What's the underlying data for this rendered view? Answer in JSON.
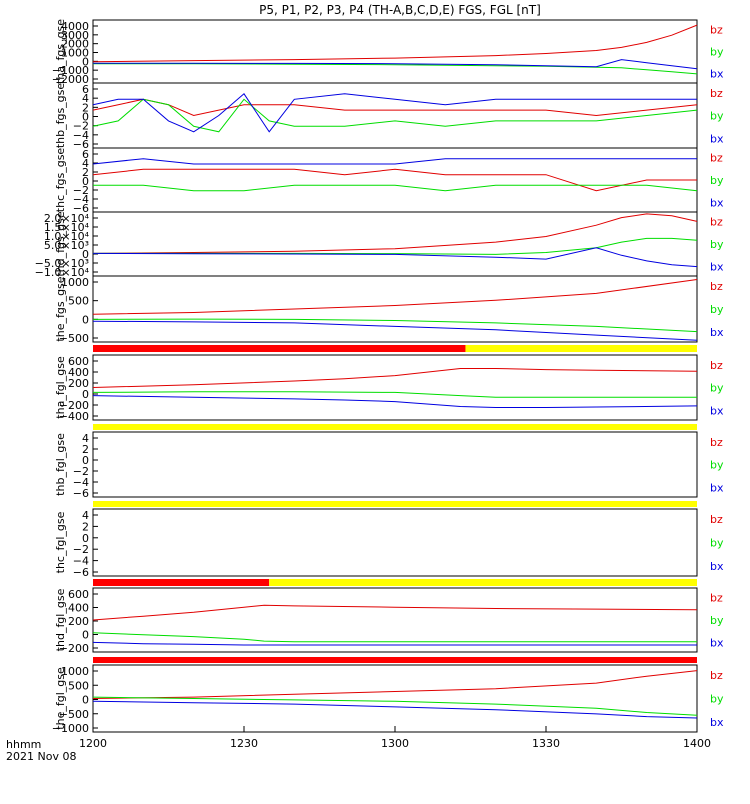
{
  "figure": {
    "title": "P5, P1, P2, P3, P4 (TH-A,B,C,D,E) FGS, FGL [nT]",
    "x_tick_labels": [
      "1200",
      "1230",
      "1300",
      "1330",
      "1400"
    ],
    "time_unit_label": "hhmm",
    "date_label": "2021 Nov 08"
  },
  "colors": {
    "bz": "#e00000",
    "by": "#00dd00",
    "bx": "#0000e0",
    "bar_red": "#ff0000",
    "bar_yellow": "#ffff00"
  },
  "chart_data": [
    {
      "type": "line",
      "panel": "tha_fgs_gse",
      "ylabel": "tha_fgs_gse",
      "y_tick_labels": [
        "4000",
        "3000",
        "2000",
        "1000",
        "0",
        "−1000",
        "−2000"
      ],
      "ylim": [
        -2000,
        4200
      ],
      "xlim": [
        0,
        120
      ],
      "x": [
        0,
        20,
        40,
        60,
        80,
        90,
        100,
        105,
        110,
        115,
        120
      ],
      "series": [
        {
          "name": "bz",
          "values": [
            100,
            200,
            300,
            450,
            700,
            900,
            1200,
            1500,
            2000,
            2700,
            3700
          ]
        },
        {
          "name": "by",
          "values": [
            -100,
            -100,
            -150,
            -200,
            -300,
            -350,
            -450,
            -500,
            -700,
            -900,
            -1100
          ]
        },
        {
          "name": "bx",
          "values": [
            -50,
            -60,
            -70,
            -100,
            -200,
            -300,
            -400,
            300,
            0,
            -300,
            -600
          ]
        }
      ],
      "legend": [
        "bz",
        "by",
        "bx"
      ],
      "grid": false
    },
    {
      "type": "line",
      "panel": "thb_fgs_gse",
      "ylabel": "thb_fgs_gse",
      "y_tick_labels": [
        "6",
        "4",
        "2",
        "0",
        "−2",
        "−4",
        "−6"
      ],
      "ylim": [
        -6,
        6
      ],
      "xlim": [
        0,
        120
      ],
      "x": [
        0,
        5,
        10,
        15,
        20,
        25,
        30,
        35,
        40,
        50,
        60,
        70,
        80,
        90,
        100,
        110,
        120
      ],
      "series": [
        {
          "name": "bz",
          "values": [
            1,
            2,
            3,
            2,
            0,
            1,
            2,
            2,
            2,
            1,
            1,
            1,
            1,
            1,
            0,
            1,
            2
          ]
        },
        {
          "name": "by",
          "values": [
            -2,
            -1,
            3,
            2,
            -2,
            -3,
            3,
            -1,
            -2,
            -2,
            -1,
            -2,
            -1,
            -1,
            -1,
            0,
            1
          ]
        },
        {
          "name": "bx",
          "values": [
            2,
            3,
            3,
            -1,
            -3,
            0,
            4,
            -3,
            3,
            4,
            3,
            2,
            3,
            3,
            3,
            3,
            3
          ]
        }
      ],
      "legend": [
        "bz",
        "by",
        "bx"
      ],
      "grid": false
    },
    {
      "type": "line",
      "panel": "thc_fgs_gse",
      "ylabel": "thc_fgs_gse",
      "y_tick_labels": [
        "6",
        "4",
        "2",
        "0",
        "−2",
        "−4",
        "−6"
      ],
      "ylim": [
        -6,
        6
      ],
      "xlim": [
        0,
        120
      ],
      "x": [
        0,
        10,
        20,
        30,
        40,
        50,
        60,
        70,
        80,
        90,
        100,
        110,
        120
      ],
      "series": [
        {
          "name": "bz",
          "values": [
            1,
            2,
            2,
            2,
            2,
            1,
            2,
            1,
            1,
            1,
            -2,
            0,
            0
          ]
        },
        {
          "name": "by",
          "values": [
            -1,
            -1,
            -2,
            -2,
            -1,
            -1,
            -1,
            -2,
            -1,
            -1,
            -1,
            -1,
            -2
          ]
        },
        {
          "name": "bx",
          "values": [
            3,
            4,
            3,
            3,
            3,
            3,
            3,
            4,
            4,
            4,
            4,
            4,
            4
          ]
        }
      ],
      "legend": [
        "bz",
        "by",
        "bx"
      ],
      "grid": false
    },
    {
      "type": "line",
      "panel": "thd_fgs_gse",
      "ylabel": "thd_fgs_gse",
      "y_tick_labels": [
        "2.0×10⁴",
        "1.5×10⁴",
        "1.0×10⁴",
        "5.0×10³",
        "0",
        "−5.0×10³",
        "−1.0×10⁴"
      ],
      "ylim": [
        -12000,
        22000
      ],
      "xlim": [
        0,
        120
      ],
      "x": [
        0,
        20,
        40,
        60,
        80,
        90,
        100,
        105,
        110,
        115,
        120
      ],
      "series": [
        {
          "name": "bz",
          "values": [
            0,
            500,
            1200,
            2500,
            6000,
            9000,
            15000,
            19000,
            21000,
            20000,
            17000
          ]
        },
        {
          "name": "by",
          "values": [
            0,
            0,
            0,
            -100,
            -500,
            500,
            3000,
            6000,
            8000,
            8000,
            7000
          ]
        },
        {
          "name": "bx",
          "values": [
            0,
            -200,
            -300,
            -500,
            -2000,
            -3000,
            3000,
            -1000,
            -4000,
            -6000,
            -7000
          ]
        }
      ],
      "legend": [
        "bz",
        "by",
        "bx"
      ],
      "grid": false
    },
    {
      "type": "line",
      "panel": "the_fgs_gse",
      "ylabel": "the_fgs_gse",
      "y_tick_labels": [
        "1000",
        "500",
        "0",
        "−500"
      ],
      "ylim": [
        -700,
        1200
      ],
      "xlim": [
        0,
        120
      ],
      "x": [
        0,
        20,
        40,
        60,
        80,
        100,
        120
      ],
      "series": [
        {
          "name": "bz",
          "values": [
            100,
            150,
            250,
            350,
            500,
            700,
            1100
          ]
        },
        {
          "name": "by",
          "values": [
            -50,
            -40,
            -50,
            -80,
            -150,
            -250,
            -400
          ]
        },
        {
          "name": "bx",
          "values": [
            -100,
            -120,
            -150,
            -250,
            -350,
            -500,
            -650
          ]
        }
      ],
      "legend": [
        "bz",
        "by",
        "bx"
      ],
      "grid": false
    },
    {
      "type": "line",
      "panel": "tha_fgl_gse",
      "ylabel": "tha_fgl_gse",
      "y_tick_labels": [
        "600",
        "400",
        "200",
        "0",
        "−200",
        "−400"
      ],
      "ylim": [
        -500,
        700
      ],
      "xlim": [
        0,
        120
      ],
      "x": [
        0,
        20,
        40,
        50,
        60,
        73,
        80,
        90,
        100,
        120
      ],
      "series": [
        {
          "name": "bz",
          "values": [
            100,
            150,
            220,
            260,
            320,
            450,
            450,
            430,
            420,
            400
          ]
        },
        {
          "name": "by",
          "values": [
            10,
            20,
            20,
            15,
            10,
            -50,
            -80,
            -80,
            -80,
            -80
          ]
        },
        {
          "name": "bx",
          "values": [
            -50,
            -80,
            -110,
            -130,
            -160,
            -250,
            -270,
            -270,
            -260,
            -240
          ]
        }
      ],
      "legend": [
        "bz",
        "by",
        "bx"
      ],
      "grid": false
    },
    {
      "type": "line",
      "panel": "thb_fgl_gse",
      "ylabel": "thb_fgl_gse",
      "y_tick_labels": [
        "4",
        "2",
        "0",
        "−2",
        "−4",
        "−6"
      ],
      "ylim": [
        -7,
        5
      ],
      "xlim": [
        0,
        120
      ],
      "x": [],
      "series": [],
      "legend": [
        "bz",
        "by",
        "bx"
      ],
      "grid": false
    },
    {
      "type": "line",
      "panel": "thc_fgl_gse",
      "ylabel": "thc_fgl_gse",
      "y_tick_labels": [
        "4",
        "2",
        "0",
        "−2",
        "−4",
        "−6"
      ],
      "ylim": [
        -7,
        5
      ],
      "xlim": [
        0,
        120
      ],
      "x": [],
      "series": [],
      "legend": [
        "bz",
        "by",
        "bx"
      ],
      "grid": false
    },
    {
      "type": "line",
      "panel": "thd_fgl_gse",
      "ylabel": "thd_fgl_gse",
      "y_tick_labels": [
        "600",
        "400",
        "200",
        "0",
        "−200"
      ],
      "ylim": [
        -300,
        700
      ],
      "xlim": [
        0,
        120
      ],
      "x": [
        0,
        10,
        20,
        30,
        34,
        40,
        60,
        80,
        100,
        120
      ],
      "series": [
        {
          "name": "bz",
          "values": [
            200,
            260,
            320,
            400,
            430,
            420,
            400,
            380,
            370,
            360
          ]
        },
        {
          "name": "by",
          "values": [
            0,
            -30,
            -60,
            -100,
            -130,
            -140,
            -140,
            -140,
            -140,
            -140
          ]
        },
        {
          "name": "bx",
          "values": [
            -150,
            -170,
            -180,
            -190,
            -190,
            -190,
            -190,
            -190,
            -190,
            -190
          ]
        }
      ],
      "legend": [
        "bz",
        "by",
        "bx"
      ],
      "grid": false
    },
    {
      "type": "line",
      "panel": "the_fgl_gse",
      "ylabel": "the_fgl_gse",
      "y_tick_labels": [
        "1000",
        "500",
        "0",
        "−500",
        "−1000"
      ],
      "ylim": [
        -1200,
        1200
      ],
      "xlim": [
        0,
        120
      ],
      "x": [
        0,
        20,
        40,
        60,
        80,
        100,
        110,
        120
      ],
      "series": [
        {
          "name": "bz",
          "values": [
            0,
            50,
            150,
            250,
            350,
            550,
            800,
            1000
          ]
        },
        {
          "name": "by",
          "values": [
            50,
            0,
            -50,
            -100,
            -200,
            -350,
            -500,
            -600
          ]
        },
        {
          "name": "bx",
          "values": [
            -100,
            -150,
            -200,
            -300,
            -400,
            -550,
            -650,
            -700
          ]
        }
      ],
      "legend": [
        "bz",
        "by",
        "bx"
      ],
      "grid": false
    }
  ],
  "mode_bars": [
    {
      "segments": [
        {
          "color": "red",
          "from": 0,
          "to": 74
        },
        {
          "color": "yellow",
          "from": 74,
          "to": 120
        }
      ]
    },
    {
      "segments": [
        {
          "color": "yellow",
          "from": 0,
          "to": 120
        }
      ]
    },
    {
      "segments": [
        {
          "color": "yellow",
          "from": 0,
          "to": 120
        }
      ]
    },
    {
      "segments": [
        {
          "color": "red",
          "from": 0,
          "to": 35
        },
        {
          "color": "yellow",
          "from": 35,
          "to": 120
        }
      ]
    },
    {
      "segments": [
        {
          "color": "red",
          "from": 0,
          "to": 120
        }
      ]
    }
  ]
}
